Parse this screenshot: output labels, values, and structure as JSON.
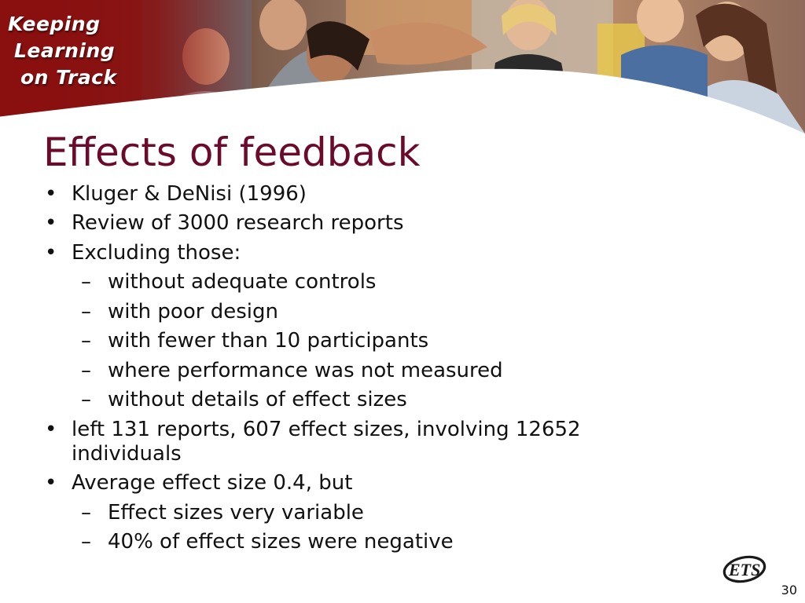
{
  "banner": {
    "brand_lines": [
      "Keeping",
      "Learning",
      "on Track"
    ]
  },
  "slide": {
    "title": "Effects of feedback",
    "bullets": [
      {
        "level": 1,
        "marker": "•",
        "text": "Kluger & DeNisi (1996)"
      },
      {
        "level": 1,
        "marker": "•",
        "text": "Review of 3000 research reports"
      },
      {
        "level": 1,
        "marker": "•",
        "text": "Excluding those:"
      },
      {
        "level": 2,
        "marker": "–",
        "text": "without adequate controls"
      },
      {
        "level": 2,
        "marker": "–",
        "text": "with poor design"
      },
      {
        "level": 2,
        "marker": "–",
        "text": "with fewer than 10 participants"
      },
      {
        "level": 2,
        "marker": "–",
        "text": "where performance was not measured"
      },
      {
        "level": 2,
        "marker": "–",
        "text": "without details of effect sizes"
      },
      {
        "level": 1,
        "marker": "•",
        "text": "left 131 reports, 607 effect sizes, involving 12652 individuals"
      },
      {
        "level": 1,
        "marker": "•",
        "text": "Average effect size 0.4, but"
      },
      {
        "level": 2,
        "marker": "–",
        "text": "Effect sizes very variable"
      },
      {
        "level": 2,
        "marker": "–",
        "text": "40% of effect sizes were negative"
      }
    ]
  },
  "footer": {
    "logo_text": "ETS",
    "page_number": "30"
  },
  "colors": {
    "brand_red": "#8c1c1c",
    "title": "#6b0a2b",
    "text": "#111111"
  }
}
